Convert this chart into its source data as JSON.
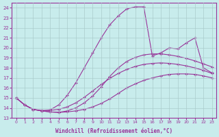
{
  "xlabel": "Windchill (Refroidissement éolien,°C)",
  "bg_color": "#c8ecec",
  "line_color": "#993399",
  "grid_color": "#aacccc",
  "xlim": [
    -0.5,
    23.5
  ],
  "ylim": [
    13,
    24.5
  ],
  "xticks": [
    0,
    1,
    2,
    3,
    4,
    5,
    6,
    7,
    8,
    9,
    10,
    11,
    12,
    13,
    14,
    15,
    16,
    17,
    18,
    19,
    20,
    21,
    22,
    23
  ],
  "yticks": [
    13,
    14,
    15,
    16,
    17,
    18,
    19,
    20,
    21,
    22,
    23,
    24
  ],
  "series": [
    {
      "x": [
        0,
        1,
        2,
        3,
        4,
        5,
        6,
        7,
        8,
        9,
        10,
        11,
        12,
        13,
        14,
        15,
        16,
        17,
        18,
        19,
        20,
        21,
        22,
        23
      ],
      "y": [
        15.0,
        14.3,
        13.85,
        13.7,
        13.6,
        13.55,
        13.6,
        13.7,
        13.85,
        14.1,
        14.45,
        14.9,
        15.45,
        16.0,
        16.4,
        16.75,
        17.0,
        17.2,
        17.35,
        17.4,
        17.4,
        17.35,
        17.2,
        17.0
      ]
    },
    {
      "x": [
        0,
        1,
        2,
        3,
        4,
        5,
        6,
        7,
        8,
        9,
        10,
        11,
        12,
        13,
        14,
        15,
        16,
        17,
        18,
        19,
        20,
        21,
        22,
        23
      ],
      "y": [
        15.0,
        14.3,
        13.85,
        13.75,
        13.75,
        13.85,
        14.1,
        14.5,
        15.05,
        15.7,
        16.35,
        16.95,
        17.45,
        17.85,
        18.15,
        18.35,
        18.45,
        18.5,
        18.45,
        18.35,
        18.2,
        18.0,
        17.75,
        17.45
      ]
    },
    {
      "x": [
        0,
        1,
        2,
        3,
        4,
        5,
        6,
        7,
        8,
        9,
        10,
        11,
        12,
        13,
        14,
        15,
        16,
        17,
        18,
        19,
        20,
        21,
        22,
        23
      ],
      "y": [
        15.0,
        14.3,
        13.85,
        13.7,
        13.6,
        13.55,
        13.7,
        14.0,
        14.5,
        15.2,
        16.1,
        17.15,
        18.0,
        18.65,
        19.05,
        19.3,
        19.4,
        19.4,
        19.3,
        19.15,
        18.95,
        18.7,
        18.4,
        18.1
      ]
    },
    {
      "x": [
        0,
        1,
        2,
        3,
        4,
        5,
        6,
        7,
        8,
        9,
        10,
        11,
        12,
        13,
        14,
        15,
        16,
        17,
        18,
        19,
        20,
        21,
        22,
        23
      ],
      "y": [
        15.0,
        14.3,
        13.85,
        13.7,
        13.8,
        14.3,
        15.25,
        16.5,
        18.0,
        19.5,
        21.0,
        22.3,
        23.2,
        23.9,
        24.1,
        24.1,
        19.2,
        19.5,
        20.0,
        19.9,
        20.5,
        21.0,
        18.0,
        17.5
      ]
    }
  ]
}
